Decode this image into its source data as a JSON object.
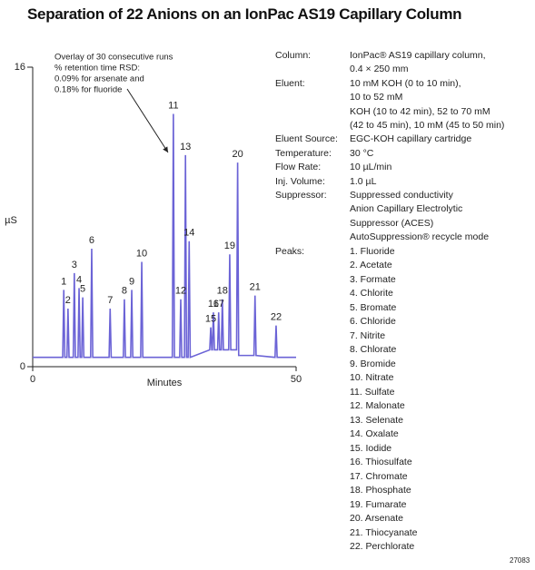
{
  "chart_data": {
    "type": "line",
    "title": "Separation of 22 Anions on an IonPac AS19 Capillary Column",
    "xlabel": "Minutes",
    "ylabel": "µS",
    "xlim": [
      0,
      50
    ],
    "xticks": [
      0,
      50
    ],
    "ylim": [
      0,
      16
    ],
    "yticks": [
      0,
      16
    ],
    "annotation": [
      "Overlay of 30 consecutive runs",
      "% retention time RSD:",
      "0.09% for arsenate and",
      "0.18% for fluoride"
    ],
    "series": [
      {
        "color": "#6b63d6",
        "x": [
          0,
          5.7,
          5.9,
          6.1,
          6.5,
          6.7,
          6.9,
          7.7,
          7.9,
          8.1,
          8.6,
          8.8,
          9.0,
          9.3,
          9.5,
          9.7,
          11.0,
          11.2,
          11.4,
          14.5,
          14.7,
          14.9,
          17.2,
          17.4,
          17.6,
          18.6,
          18.8,
          19.0,
          20.5,
          20.7,
          20.9,
          26.5,
          26.7,
          26.9,
          27.9,
          28.1,
          28.3,
          28.8,
          29.0,
          29.2,
          29.5,
          29.7,
          29.9,
          33.6,
          33.8,
          34.0,
          34.1,
          34.3,
          34.5,
          35.1,
          35.3,
          35.5,
          35.8,
          36.0,
          36.2,
          37.2,
          37.4,
          37.6,
          38.7,
          38.9,
          39.1,
          42.0,
          42.2,
          42.4,
          46.0,
          46.2,
          46.4,
          50
        ],
        "values": [
          0.5,
          0.5,
          4.1,
          0.5,
          0.5,
          3.1,
          0.5,
          0.5,
          5.0,
          0.5,
          0.5,
          4.2,
          0.5,
          0.5,
          3.7,
          0.5,
          0.5,
          6.3,
          0.5,
          0.5,
          3.1,
          0.5,
          0.5,
          3.6,
          0.5,
          0.5,
          4.1,
          0.5,
          0.5,
          5.6,
          0.5,
          0.5,
          13.5,
          0.5,
          0.5,
          3.6,
          0.5,
          0.5,
          11.3,
          0.5,
          0.5,
          6.7,
          0.5,
          0.9,
          2.1,
          0.9,
          0.9,
          2.9,
          0.9,
          0.9,
          2.9,
          0.9,
          0.9,
          3.6,
          0.9,
          0.9,
          6.0,
          0.9,
          0.9,
          10.9,
          0.6,
          0.6,
          3.8,
          0.6,
          0.5,
          2.2,
          0.5,
          0.5
        ],
        "peak_labels": [
          null,
          null,
          "1",
          null,
          null,
          "2",
          null,
          null,
          "3",
          null,
          null,
          "4",
          null,
          null,
          "5",
          null,
          null,
          "6",
          null,
          null,
          "7",
          null,
          null,
          "8",
          null,
          null,
          "9",
          null,
          null,
          "10",
          null,
          null,
          "11",
          null,
          null,
          "12",
          null,
          null,
          "13",
          null,
          null,
          "14",
          null,
          null,
          "15",
          null,
          null,
          "16",
          null,
          null,
          "17",
          null,
          null,
          "18",
          null,
          null,
          "19",
          null,
          null,
          "20",
          null,
          null,
          "21",
          null,
          null,
          "22",
          null,
          null
        ]
      }
    ]
  },
  "conditions": [
    {
      "label": "Column:",
      "lines": [
        "IonPac® AS19 capillary column,",
        "0.4 × 250 mm"
      ]
    },
    {
      "label": "Eluent:",
      "lines": [
        "10 mM KOH (0 to 10 min),",
        "10 to 52 mM",
        "KOH (10 to 42 min), 52 to 70 mM",
        "(42 to 45 min), 10 mM (45 to 50 min)"
      ]
    },
    {
      "label": "Eluent Source:",
      "lines": [
        "EGC-KOH capillary cartridge"
      ]
    },
    {
      "label": "Temperature:",
      "lines": [
        "30 °C"
      ]
    },
    {
      "label": "Flow Rate:",
      "lines": [
        "10 µL/min"
      ]
    },
    {
      "label": "Inj. Volume:",
      "lines": [
        "1.0 µL"
      ]
    },
    {
      "label": "Suppressor:",
      "lines": [
        "Suppressed conductivity",
        "Anion Capillary Electrolytic",
        "Suppressor (ACES)",
        "AutoSuppression® recycle mode"
      ]
    },
    {
      "label": "Peaks:",
      "lines": [
        "1.  Fluoride",
        "2.  Acetate",
        "3.  Formate",
        "4.  Chlorite",
        "5.  Bromate",
        "6.  Chloride",
        "7.  Nitrite",
        "8.  Chlorate",
        "9.  Bromide",
        "10. Nitrate",
        "11. Sulfate",
        "12. Malonate",
        "13. Selenate",
        "14. Oxalate",
        "15. Iodide",
        "16. Thiosulfate",
        "17. Chromate",
        "18. Phosphate",
        "19. Fumarate",
        "20. Arsenate",
        "21. Thiocyanate",
        "22. Perchlorate"
      ]
    }
  ],
  "figure_id": "27083"
}
